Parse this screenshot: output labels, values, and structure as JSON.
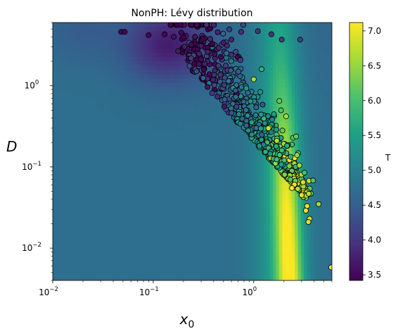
{
  "chart_data": {
    "type": "scatter",
    "title": "NonPH: Lévy distribution",
    "xlabel": "x",
    "xlabel_sub": "0",
    "ylabel": "D",
    "x_scale": "log",
    "y_scale": "log",
    "xlim": [
      0.01,
      6.0
    ],
    "ylim": [
      0.004,
      6.0
    ],
    "x_ticks": [
      {
        "value": 0.01,
        "base": "10",
        "exp": "−2"
      },
      {
        "value": 0.1,
        "base": "10",
        "exp": "−1"
      },
      {
        "value": 1,
        "base": "10",
        "exp": "0"
      }
    ],
    "y_ticks": [
      {
        "value": 0.01,
        "base": "10",
        "exp": "−2"
      },
      {
        "value": 0.1,
        "base": "10",
        "exp": "−1"
      },
      {
        "value": 1,
        "base": "10",
        "exp": "0"
      }
    ],
    "colorbar": {
      "label": "T",
      "range": [
        3.42,
        7.12
      ],
      "ticks": [
        "3.5",
        "4.0",
        "4.5",
        "5.0",
        "5.5",
        "6.0",
        "6.5",
        "7.0"
      ],
      "tick_values": [
        3.5,
        4.0,
        4.5,
        5.0,
        5.5,
        6.0,
        6.5,
        7.0
      ],
      "colormap": "viridis"
    },
    "background": "heatmap of T over (x0, D); about 4.7 at left, darker band near x0 0.05–0.5 at high D, bright ridge (T ≈ 6.5–7) near x0 ≈ 2",
    "points": [
      {
        "x": 0.048,
        "y": 4.6,
        "t": 3.5
      },
      {
        "x": 0.052,
        "y": 4.6,
        "t": 3.5
      },
      {
        "x": 0.09,
        "y": 4.2,
        "t": 3.5
      },
      {
        "x": 0.13,
        "y": 4.3,
        "t": 3.5
      },
      {
        "x": 0.16,
        "y": 4.0,
        "t": 3.6
      },
      {
        "x": 0.19,
        "y": 4.5,
        "t": 3.5
      },
      {
        "x": 0.26,
        "y": 4.0,
        "t": 3.6
      },
      {
        "x": 0.3,
        "y": 3.1,
        "t": 3.7
      },
      {
        "x": 0.4,
        "y": 5.6,
        "t": 3.8
      },
      {
        "x": 0.5,
        "y": 3.4,
        "t": 3.7
      },
      {
        "x": 0.6,
        "y": 3.7,
        "t": 3.8
      },
      {
        "x": 0.75,
        "y": 4.6,
        "t": 3.9
      },
      {
        "x": 1.1,
        "y": 4.7,
        "t": 4.0
      },
      {
        "x": 1.5,
        "y": 4.3,
        "t": 4.0
      },
      {
        "x": 1.9,
        "y": 3.7,
        "t": 4.1
      },
      {
        "x": 2.9,
        "y": 3.7,
        "t": 4.1
      },
      {
        "x": 1.2,
        "y": 1.6,
        "t": 5.8
      },
      {
        "x": 1.0,
        "y": 1.2,
        "t": 6.6
      },
      {
        "x": 1.8,
        "y": 0.65,
        "t": 6.2
      },
      {
        "x": 2.1,
        "y": 0.42,
        "t": 6.6
      },
      {
        "x": 1.4,
        "y": 0.3,
        "t": 6.8
      },
      {
        "x": 1.7,
        "y": 0.21,
        "t": 6.7
      },
      {
        "x": 2.7,
        "y": 0.14,
        "t": 6.5
      },
      {
        "x": 3.2,
        "y": 0.085,
        "t": 6.0
      },
      {
        "x": 3.9,
        "y": 0.068,
        "t": 6.1
      },
      {
        "x": 2.4,
        "y": 0.055,
        "t": 7.1
      },
      {
        "x": 3.0,
        "y": 0.045,
        "t": 7.0
      },
      {
        "x": 3.4,
        "y": 0.033,
        "t": 7.0
      },
      {
        "x": 3.3,
        "y": 0.029,
        "t": 7.0
      },
      {
        "x": 3.6,
        "y": 0.023,
        "t": 6.9
      },
      {
        "x": 3.5,
        "y": 0.021,
        "t": 6.9
      },
      {
        "x": 5.9,
        "y": 0.0058,
        "t": 7.1
      }
    ],
    "cloud": {
      "description": "dense scatter cloud along a diagonal band from (0.2, 1.5) to (3.5, 0.03); low T at upper-left, high T at lower-right",
      "count": 620
    }
  }
}
